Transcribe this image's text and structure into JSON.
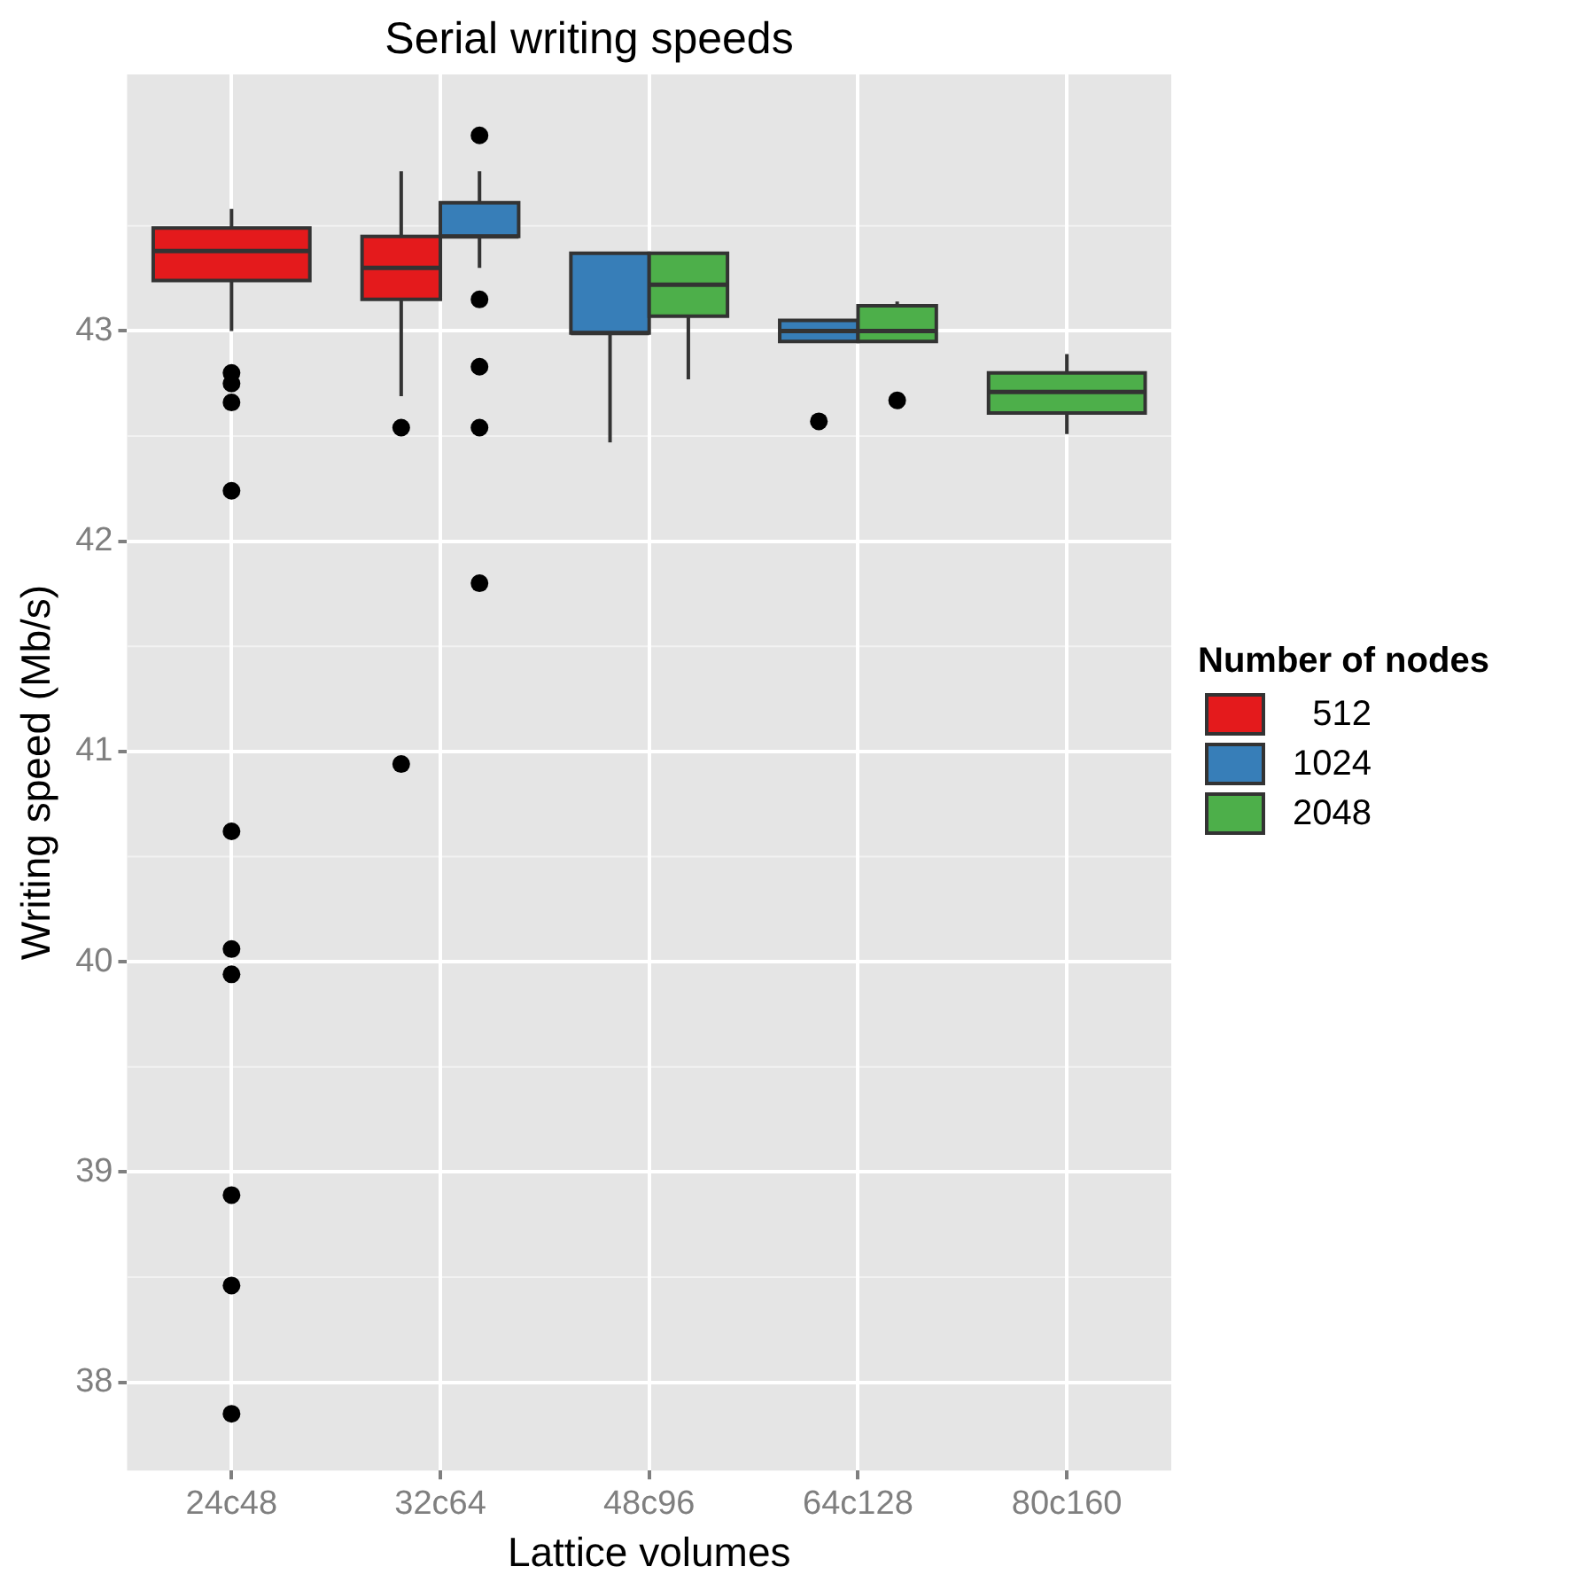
{
  "chart_data": {
    "type": "box",
    "title": "Serial writing speeds",
    "xlabel": "Lattice volumes",
    "ylabel": "Writing speed (Mb/s)",
    "legend_title": "Number of nodes",
    "categories": [
      "24c48",
      "32c64",
      "48c96",
      "64c128",
      "80c160"
    ],
    "ylim": [
      37.58,
      44.22
    ],
    "yticks": [
      38,
      39,
      40,
      41,
      42,
      43
    ],
    "grid": true,
    "legend": "right",
    "marker": "circle",
    "series": [
      {
        "name": "512",
        "color": "#e41a1c",
        "boxes": [
          {
            "low": 43.0,
            "q1": 43.24,
            "median": 43.38,
            "q3": 43.49,
            "high": 43.58,
            "outliers": [
              42.8,
              42.75,
              42.66,
              42.24,
              40.62,
              40.06,
              39.94,
              38.89,
              38.46,
              37.85
            ]
          },
          {
            "low": 42.69,
            "q1": 43.15,
            "median": 43.3,
            "q3": 43.45,
            "high": 43.76,
            "outliers": [
              42.54,
              40.94
            ]
          },
          null,
          null,
          null
        ]
      },
      {
        "name": "1024",
        "color": "#377eb8",
        "boxes": [
          null,
          {
            "low": 43.3,
            "q1": 43.45,
            "median": 43.45,
            "q3": 43.61,
            "high": 43.76,
            "outliers": [
              43.93,
              43.15,
              42.83,
              42.54,
              41.8
            ]
          },
          {
            "low": 42.47,
            "q1": 42.99,
            "median": 42.99,
            "q3": 43.37,
            "high": 43.37
          },
          {
            "low": 42.95,
            "q1": 42.95,
            "median": 43.0,
            "q3": 43.05,
            "high": 43.05,
            "outliers": [
              42.57
            ]
          },
          null
        ]
      },
      {
        "name": "2048",
        "color": "#4daf4a",
        "boxes": [
          null,
          null,
          {
            "low": 42.77,
            "q1": 43.07,
            "median": 43.22,
            "q3": 43.37,
            "high": 43.37
          },
          {
            "low": 42.95,
            "q1": 42.95,
            "median": 43.0,
            "q3": 43.12,
            "high": 43.14,
            "outliers": [
              42.67
            ]
          },
          {
            "low": 42.51,
            "q1": 42.61,
            "median": 42.71,
            "q3": 42.8,
            "high": 42.89
          }
        ]
      }
    ]
  }
}
